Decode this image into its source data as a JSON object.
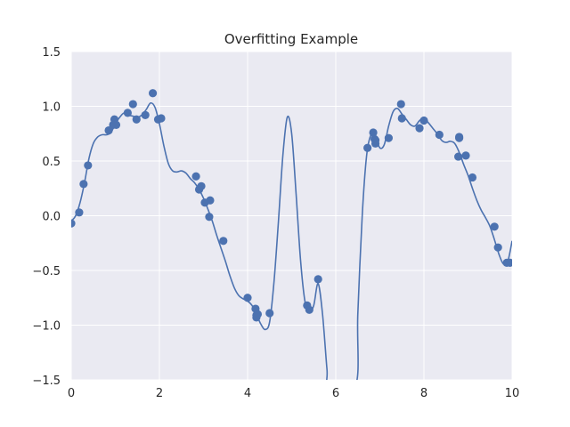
{
  "chart_data": {
    "type": "scatter",
    "title": "Overfitting Example",
    "xlabel": "",
    "ylabel": "",
    "xlim": [
      0,
      10
    ],
    "ylim": [
      -1.5,
      1.5
    ],
    "x_ticks": [
      0,
      2,
      4,
      6,
      8,
      10
    ],
    "x_tick_labels": [
      "0",
      "2",
      "4",
      "6",
      "8",
      "10"
    ],
    "y_ticks": [
      -1.5,
      -1.0,
      -0.5,
      0.0,
      0.5,
      1.0,
      1.5
    ],
    "y_tick_labels": [
      "−1.5",
      "−1.0",
      "−0.5",
      "0.0",
      "0.5",
      "1.0",
      "1.5"
    ],
    "grid": true,
    "colors": {
      "background": "#eaeaf2",
      "grid": "#ffffff",
      "series": "#4c72b0",
      "text": "#262626"
    },
    "series": [
      {
        "kind": "points",
        "x": [
          0.0,
          0.18,
          0.28,
          0.38,
          0.85,
          0.95,
          0.98,
          1.02,
          1.28,
          1.4,
          1.48,
          1.68,
          1.85,
          1.97,
          2.04,
          2.83,
          2.9,
          2.95,
          3.03,
          3.13,
          3.15,
          3.45,
          4.0,
          4.18,
          4.2,
          4.2,
          4.23,
          4.5,
          5.35,
          5.4,
          5.6,
          6.72,
          6.85,
          6.88,
          6.9,
          6.9,
          7.2,
          7.48,
          7.5,
          7.9,
          8.0,
          8.35,
          8.78,
          8.8,
          8.8,
          8.95,
          9.1,
          9.6,
          9.68,
          9.88,
          9.95
        ],
        "y": [
          -0.07,
          0.03,
          0.29,
          0.46,
          0.78,
          0.83,
          0.88,
          0.83,
          0.94,
          1.02,
          0.88,
          0.92,
          1.12,
          0.88,
          0.89,
          0.36,
          0.24,
          0.27,
          0.12,
          -0.01,
          0.14,
          -0.23,
          -0.75,
          -0.85,
          -0.91,
          -0.93,
          -0.9,
          -0.89,
          -0.82,
          -0.86,
          -0.58,
          0.62,
          0.76,
          0.7,
          0.69,
          0.66,
          0.71,
          1.02,
          0.89,
          0.8,
          0.87,
          0.74,
          0.54,
          0.71,
          0.72,
          0.55,
          0.35,
          -0.1,
          -0.29,
          -0.43,
          -0.43
        ]
      },
      {
        "kind": "curve",
        "x": [
          0.0,
          0.1,
          0.2,
          0.3,
          0.4,
          0.5,
          0.6,
          0.7,
          0.8,
          0.9,
          1.0,
          1.1,
          1.2,
          1.3,
          1.4,
          1.5,
          1.6,
          1.7,
          1.8,
          1.9,
          2.0,
          2.1,
          2.2,
          2.3,
          2.4,
          2.5,
          2.6,
          2.7,
          2.8,
          2.9,
          3.0,
          3.1,
          3.2,
          3.3,
          3.4,
          3.5,
          3.6,
          3.7,
          3.8,
          3.9,
          4.0,
          4.1,
          4.2,
          4.3,
          4.4,
          4.5,
          4.6,
          4.7,
          4.8,
          4.9,
          5.0,
          5.1,
          5.2,
          5.3,
          5.4,
          5.5,
          5.6,
          5.7,
          5.8,
          5.85,
          6.45,
          6.5,
          6.6,
          6.7,
          6.8,
          6.9,
          7.0,
          7.1,
          7.2,
          7.3,
          7.4,
          7.5,
          7.6,
          7.7,
          7.8,
          7.9,
          8.0,
          8.1,
          8.2,
          8.3,
          8.4,
          8.5,
          8.6,
          8.7,
          8.8,
          8.9,
          9.0,
          9.1,
          9.2,
          9.3,
          9.4,
          9.5,
          9.6,
          9.7,
          9.8,
          9.9,
          10.0
        ],
        "y": [
          -0.05,
          0.0,
          0.12,
          0.3,
          0.52,
          0.66,
          0.72,
          0.74,
          0.74,
          0.76,
          0.84,
          0.9,
          0.94,
          0.92,
          0.91,
          0.9,
          0.92,
          0.97,
          1.03,
          0.99,
          0.84,
          0.64,
          0.48,
          0.41,
          0.4,
          0.41,
          0.39,
          0.34,
          0.3,
          0.24,
          0.16,
          0.06,
          -0.05,
          -0.18,
          -0.3,
          -0.42,
          -0.55,
          -0.66,
          -0.73,
          -0.76,
          -0.78,
          -0.82,
          -0.9,
          -0.99,
          -1.04,
          -0.97,
          -0.6,
          -0.05,
          0.55,
          0.9,
          0.75,
          0.2,
          -0.4,
          -0.78,
          -0.88,
          -0.82,
          -0.62,
          -0.9,
          -1.4,
          -1.55,
          -1.55,
          -0.9,
          0.0,
          0.55,
          0.74,
          0.72,
          0.62,
          0.65,
          0.82,
          0.95,
          0.98,
          0.93,
          0.88,
          0.83,
          0.82,
          0.87,
          0.89,
          0.85,
          0.8,
          0.75,
          0.69,
          0.67,
          0.68,
          0.66,
          0.58,
          0.47,
          0.37,
          0.25,
          0.14,
          0.05,
          -0.02,
          -0.1,
          -0.22,
          -0.35,
          -0.44,
          -0.42,
          -0.23
        ]
      }
    ]
  }
}
